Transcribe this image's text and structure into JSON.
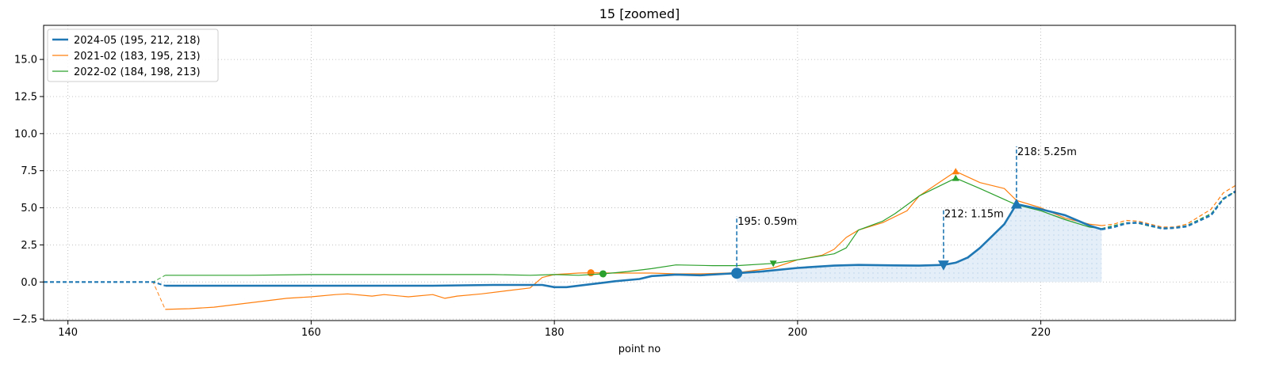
{
  "chart_data": {
    "type": "line",
    "title": "15  [zoomed]",
    "xlabel": "point no",
    "ylabel": "",
    "xlim": [
      138,
      236
    ],
    "ylim": [
      -2.6,
      17.3
    ],
    "xticks": [
      140,
      160,
      180,
      200,
      220
    ],
    "yticks": [
      -2.5,
      0.0,
      2.5,
      5.0,
      7.5,
      10.0,
      12.5,
      15.0
    ],
    "xtick_labels": [
      "140",
      "160",
      "180",
      "200",
      "220"
    ],
    "ytick_labels": [
      "−2.5",
      "0.0",
      "2.5",
      "5.0",
      "7.5",
      "10.0",
      "12.5",
      "15.0"
    ],
    "grid": true,
    "legend_position": "top-left",
    "series": [
      {
        "name": "2024-05 (195, 212, 218)",
        "color": "#1f77b4",
        "style": "thick",
        "dashed_before": [
          [
            138,
            0.0
          ],
          [
            147,
            0.0
          ],
          [
            148,
            -0.25
          ]
        ],
        "solid": [
          [
            148,
            -0.25
          ],
          [
            150,
            -0.25
          ],
          [
            155,
            -0.25
          ],
          [
            160,
            -0.25
          ],
          [
            165,
            -0.25
          ],
          [
            170,
            -0.25
          ],
          [
            175,
            -0.2
          ],
          [
            179,
            -0.2
          ],
          [
            180,
            -0.35
          ],
          [
            181,
            -0.35
          ],
          [
            183,
            -0.15
          ],
          [
            185,
            0.05
          ],
          [
            187,
            0.2
          ],
          [
            188,
            0.4
          ],
          [
            190,
            0.5
          ],
          [
            192,
            0.45
          ],
          [
            194,
            0.55
          ],
          [
            195,
            0.59
          ],
          [
            197,
            0.7
          ],
          [
            200,
            0.95
          ],
          [
            203,
            1.1
          ],
          [
            205,
            1.15
          ],
          [
            208,
            1.12
          ],
          [
            210,
            1.1
          ],
          [
            212,
            1.15
          ],
          [
            213,
            1.3
          ],
          [
            214,
            1.65
          ],
          [
            215,
            2.3
          ],
          [
            216,
            3.1
          ],
          [
            217,
            3.9
          ],
          [
            218,
            5.25
          ],
          [
            220,
            4.9
          ],
          [
            222,
            4.5
          ],
          [
            224,
            3.8
          ],
          [
            225,
            3.55
          ]
        ],
        "dashed_after": [
          [
            225,
            3.55
          ],
          [
            226,
            3.7
          ],
          [
            227,
            3.95
          ],
          [
            228,
            4.0
          ],
          [
            229,
            3.8
          ],
          [
            230,
            3.6
          ],
          [
            231,
            3.65
          ],
          [
            232,
            3.75
          ],
          [
            234,
            4.5
          ],
          [
            235,
            5.6
          ],
          [
            236,
            6.1
          ]
        ],
        "markers": [
          {
            "x": 195,
            "y": 0.59,
            "kind": "circle",
            "label": "195: 0.59m",
            "label_y": 4.6
          },
          {
            "x": 212,
            "y": 1.15,
            "kind": "triangle-down",
            "label": "212: 1.15m",
            "label_y": 5.1
          },
          {
            "x": 218,
            "y": 5.25,
            "kind": "triangle-up",
            "label": "218: 5.25m",
            "label_y": 9.3
          }
        ],
        "fill_between": [
          195,
          225
        ]
      },
      {
        "name": "2021-02 (183, 195, 213)",
        "color": "#ff7f0e",
        "style": "thin",
        "dashed_before": [
          [
            138,
            0.0
          ],
          [
            147,
            0.0
          ],
          [
            148,
            -1.85
          ]
        ],
        "solid": [
          [
            148,
            -1.85
          ],
          [
            150,
            -1.8
          ],
          [
            152,
            -1.7
          ],
          [
            154,
            -1.5
          ],
          [
            156,
            -1.3
          ],
          [
            158,
            -1.1
          ],
          [
            160,
            -1.0
          ],
          [
            162,
            -0.85
          ],
          [
            163,
            -0.8
          ],
          [
            165,
            -0.95
          ],
          [
            166,
            -0.85
          ],
          [
            168,
            -1.0
          ],
          [
            170,
            -0.85
          ],
          [
            171,
            -1.1
          ],
          [
            172,
            -0.95
          ],
          [
            174,
            -0.8
          ],
          [
            176,
            -0.6
          ],
          [
            178,
            -0.4
          ],
          [
            179,
            0.3
          ],
          [
            180,
            0.5
          ],
          [
            182,
            0.6
          ],
          [
            183,
            0.62
          ],
          [
            185,
            0.6
          ],
          [
            188,
            0.6
          ],
          [
            190,
            0.55
          ],
          [
            192,
            0.55
          ],
          [
            195,
            0.62
          ],
          [
            198,
            0.95
          ],
          [
            200,
            1.5
          ],
          [
            202,
            1.8
          ],
          [
            203,
            2.2
          ],
          [
            204,
            3.0
          ],
          [
            205,
            3.5
          ],
          [
            207,
            4.0
          ],
          [
            209,
            4.8
          ],
          [
            210,
            5.8
          ],
          [
            212,
            6.9
          ],
          [
            213,
            7.45
          ],
          [
            215,
            6.7
          ],
          [
            217,
            6.3
          ],
          [
            218,
            5.5
          ],
          [
            220,
            5.0
          ],
          [
            222,
            4.3
          ],
          [
            224,
            3.9
          ],
          [
            225,
            3.8
          ]
        ],
        "dashed_after": [
          [
            225,
            3.8
          ],
          [
            226,
            3.9
          ],
          [
            227,
            4.15
          ],
          [
            228,
            4.1
          ],
          [
            229,
            3.9
          ],
          [
            230,
            3.7
          ],
          [
            231,
            3.7
          ],
          [
            232,
            3.9
          ],
          [
            234,
            4.9
          ],
          [
            235,
            6.0
          ],
          [
            236,
            6.5
          ]
        ],
        "markers": [
          {
            "x": 183,
            "y": 0.62,
            "kind": "circle"
          },
          {
            "x": 195,
            "y": 0.62,
            "kind": "triangle-down"
          },
          {
            "x": 213,
            "y": 7.45,
            "kind": "triangle-up"
          }
        ]
      },
      {
        "name": "2022-02 (184, 198, 213)",
        "color": "#2ca02c",
        "style": "thin",
        "dashed_before": [
          [
            138,
            0.0
          ],
          [
            147,
            0.0
          ],
          [
            148,
            0.45
          ]
        ],
        "solid": [
          [
            148,
            0.45
          ],
          [
            150,
            0.45
          ],
          [
            155,
            0.45
          ],
          [
            160,
            0.5
          ],
          [
            165,
            0.5
          ],
          [
            170,
            0.5
          ],
          [
            175,
            0.5
          ],
          [
            178,
            0.45
          ],
          [
            180,
            0.5
          ],
          [
            182,
            0.45
          ],
          [
            184,
            0.55
          ],
          [
            186,
            0.7
          ],
          [
            188,
            0.9
          ],
          [
            190,
            1.15
          ],
          [
            193,
            1.1
          ],
          [
            195,
            1.1
          ],
          [
            198,
            1.25
          ],
          [
            200,
            1.5
          ],
          [
            203,
            1.9
          ],
          [
            204,
            2.3
          ],
          [
            205,
            3.5
          ],
          [
            207,
            4.1
          ],
          [
            208,
            4.6
          ],
          [
            210,
            5.8
          ],
          [
            212,
            6.6
          ],
          [
            213,
            7.0
          ],
          [
            215,
            6.3
          ],
          [
            218,
            5.2
          ],
          [
            220,
            4.8
          ],
          [
            222,
            4.2
          ],
          [
            224,
            3.7
          ],
          [
            225,
            3.6
          ]
        ],
        "dashed_after": [
          [
            225,
            3.6
          ],
          [
            226,
            3.8
          ],
          [
            227,
            4.0
          ],
          [
            228,
            3.95
          ],
          [
            229,
            3.75
          ],
          [
            230,
            3.6
          ],
          [
            231,
            3.65
          ],
          [
            232,
            3.8
          ],
          [
            234,
            4.6
          ],
          [
            235,
            5.6
          ],
          [
            236,
            6.1
          ]
        ],
        "markers": [
          {
            "x": 184,
            "y": 0.55,
            "kind": "circle"
          },
          {
            "x": 198,
            "y": 1.25,
            "kind": "triangle-down"
          },
          {
            "x": 213,
            "y": 7.0,
            "kind": "triangle-up"
          }
        ]
      }
    ]
  }
}
